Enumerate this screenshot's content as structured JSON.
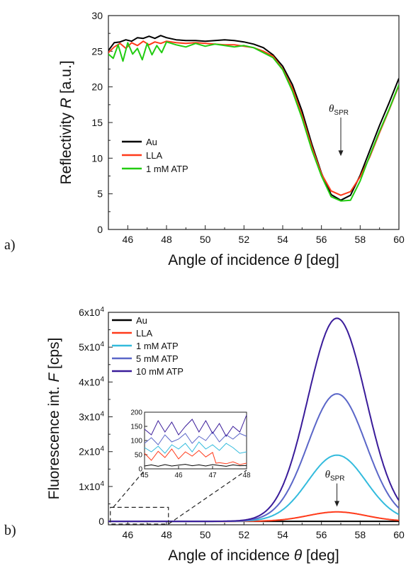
{
  "panel_a_label": "a)",
  "panel_b_label": "b)",
  "chart_data": [
    {
      "type": "line",
      "xlabel_main": "Angle of incidence ",
      "xlabel_sym": "θ",
      "xlabel_unit": " [deg]",
      "ylabel_main": "Reflectivity ",
      "ylabel_sym": "R",
      "ylabel_unit": " [a.u.]",
      "xlim": [
        45,
        60
      ],
      "ylim": [
        0,
        30
      ],
      "xticks": [
        46,
        48,
        50,
        52,
        54,
        56,
        58,
        60
      ],
      "yticks": [
        0,
        5,
        10,
        15,
        20,
        25,
        30
      ],
      "annotation": {
        "sym": "θ",
        "sub": "SPR",
        "x": 57,
        "y_text": 16.5,
        "arrow_to": 10.3
      },
      "series": [
        {
          "name": "Au",
          "color": "#000000",
          "x": [
            45,
            45.3,
            45.6,
            45.9,
            46.2,
            46.5,
            46.8,
            47.1,
            47.4,
            47.7,
            48,
            48.5,
            49,
            49.5,
            50,
            50.5,
            51,
            51.5,
            52,
            52.5,
            53,
            53.5,
            54,
            54.5,
            55,
            55.5,
            56,
            56.5,
            57,
            57.5,
            58,
            58.5,
            59,
            59.5,
            60
          ],
          "y": [
            25.1,
            26.2,
            26.3,
            26.6,
            26.4,
            26.9,
            26.8,
            27.1,
            26.8,
            27.2,
            26.9,
            26.6,
            26.5,
            26.5,
            26.4,
            26.5,
            26.6,
            26.5,
            26.3,
            26.0,
            25.5,
            24.5,
            22.9,
            20.3,
            16.6,
            12.0,
            7.9,
            4.9,
            4.1,
            4.8,
            7.6,
            11.1,
            14.6,
            17.8,
            21.2
          ]
        },
        {
          "name": "LLA",
          "color": "#ff3a1a",
          "x": [
            45,
            45.3,
            45.6,
            45.9,
            46.2,
            46.5,
            46.8,
            47.1,
            47.4,
            47.7,
            48,
            48.5,
            49,
            49.5,
            50,
            50.5,
            51,
            51.5,
            52,
            52.5,
            53,
            53.5,
            54,
            54.5,
            55,
            55.5,
            56,
            56.5,
            57,
            57.5,
            58,
            58.5,
            59,
            59.5,
            60
          ],
          "y": [
            24.8,
            25.6,
            26.1,
            25.4,
            26.2,
            25.8,
            26.4,
            25.9,
            26.3,
            26.1,
            26.4,
            26.2,
            26.1,
            26.2,
            26.1,
            26.0,
            25.9,
            25.9,
            25.7,
            25.5,
            25.0,
            24.3,
            22.5,
            19.8,
            16.0,
            11.6,
            7.8,
            5.4,
            4.8,
            5.3,
            7.4,
            10.2,
            13.6,
            16.8,
            20.2
          ]
        },
        {
          "name": "1 mM ATP",
          "color": "#22cc11",
          "x": [
            45,
            45.25,
            45.5,
            45.75,
            46,
            46.25,
            46.5,
            46.75,
            47,
            47.25,
            47.5,
            47.75,
            48,
            48.5,
            49,
            49.5,
            50,
            50.5,
            51,
            51.5,
            52,
            52.5,
            53,
            53.5,
            54,
            54.5,
            55,
            55.5,
            56,
            56.5,
            57,
            57.5,
            58,
            58.5,
            59,
            59.5,
            60
          ],
          "y": [
            24.6,
            24.0,
            25.9,
            23.6,
            26.2,
            24.6,
            25.4,
            23.8,
            26.1,
            24.5,
            25.8,
            24.8,
            26.3,
            25.9,
            25.6,
            26.1,
            25.7,
            26.0,
            25.8,
            25.6,
            25.8,
            25.5,
            24.8,
            24.1,
            22.4,
            19.4,
            15.6,
            11.2,
            7.5,
            4.6,
            4.0,
            4.1,
            6.8,
            10.4,
            13.8,
            16.9,
            20.3
          ]
        }
      ],
      "legend": [
        "Au",
        "LLA",
        "1 mM ATP"
      ]
    },
    {
      "type": "line",
      "xlabel_main": "Angle of incidence ",
      "xlabel_sym": "θ",
      "xlabel_unit": " [deg]",
      "ylabel_main": "Fluorescence int. ",
      "ylabel_sym": "F",
      "ylabel_unit": " [cps]",
      "xlim": [
        45,
        60
      ],
      "ylim": [
        -1000,
        60000
      ],
      "xticks": [
        46,
        48,
        50,
        52,
        54,
        56,
        58,
        60
      ],
      "yticks": [
        0,
        10000,
        20000,
        30000,
        40000,
        50000,
        60000
      ],
      "ytick_labels": [
        {
          "base": "0",
          "exp": ""
        },
        {
          "base": "1x10",
          "exp": "4"
        },
        {
          "base": "2x10",
          "exp": "4"
        },
        {
          "base": "3x10",
          "exp": "4"
        },
        {
          "base": "4x10",
          "exp": "4"
        },
        {
          "base": "5x10",
          "exp": "4"
        },
        {
          "base": "6x10",
          "exp": "4"
        }
      ],
      "annotation": {
        "sym": "θ",
        "sub": "SPR",
        "x": 56.8,
        "y_text": 12500,
        "arrow_to": 4200
      },
      "series": [
        {
          "name": "Au",
          "color": "#000000",
          "peak": 0,
          "center": 56.8,
          "width": 1.5
        },
        {
          "name": "LLA",
          "color": "#ff3a1a",
          "peak": 2700,
          "center": 56.8,
          "width": 1.5
        },
        {
          "name": "1 mM ATP",
          "color": "#33bbdd",
          "peak": 19000,
          "center": 56.8,
          "width": 1.5
        },
        {
          "name": "5 mM ATP",
          "color": "#5a66c8",
          "peak": 36600,
          "center": 56.8,
          "width": 1.5
        },
        {
          "name": "10 mM ATP",
          "color": "#3a1c9a",
          "peak": 58300,
          "center": 56.8,
          "width": 1.5
        }
      ],
      "legend": [
        "Au",
        "LLA",
        "1 mM ATP",
        "5 mM ATP",
        "10 mM ATP"
      ],
      "inset": {
        "xlim": [
          45,
          48
        ],
        "ylim": [
          0,
          200
        ],
        "xticks": [
          45,
          46,
          47,
          48
        ],
        "yticks": [
          0,
          50,
          100,
          150,
          200
        ],
        "series": [
          {
            "name": "Au",
            "color": "#000000",
            "x": [
              45,
              45.2,
              45.4,
              45.6,
              45.8,
              46,
              46.2,
              46.4,
              46.6,
              46.8,
              47,
              47.2,
              47.4,
              47.6,
              47.8,
              48
            ],
            "y": [
              10,
              14,
              9,
              15,
              10,
              13,
              16,
              11,
              14,
              10,
              15,
              12,
              9,
              14,
              11,
              12
            ]
          },
          {
            "name": "LLA",
            "color": "#ff3a1a",
            "x": [
              45,
              45.2,
              45.4,
              45.6,
              45.8,
              46,
              46.2,
              46.4,
              46.6,
              46.8,
              47,
              47.1,
              47.2,
              47.4,
              47.6,
              47.8,
              48
            ],
            "y": [
              55,
              30,
              62,
              40,
              70,
              35,
              60,
              45,
              65,
              42,
              58,
              20,
              22,
              18,
              25,
              15,
              20
            ]
          },
          {
            "name": "1 mM ATP",
            "color": "#33bbdd",
            "x": [
              45,
              45.2,
              45.4,
              45.6,
              45.8,
              46,
              46.2,
              46.4,
              46.6,
              46.8,
              47,
              47.2,
              47.4,
              47.6,
              47.8,
              48
            ],
            "y": [
              75,
              60,
              80,
              55,
              85,
              70,
              90,
              60,
              95,
              70,
              85,
              65,
              90,
              75,
              55,
              60
            ]
          },
          {
            "name": "5 mM ATP",
            "color": "#5a66c8",
            "x": [
              45,
              45.2,
              45.4,
              45.6,
              45.8,
              46,
              46.2,
              46.4,
              46.6,
              46.8,
              47,
              47.2,
              47.4,
              47.6,
              47.8,
              48
            ],
            "y": [
              90,
              110,
              85,
              120,
              95,
              105,
              125,
              90,
              115,
              100,
              130,
              95,
              120,
              105,
              125,
              115
            ]
          },
          {
            "name": "10 mM ATP",
            "color": "#3a1c9a",
            "x": [
              45,
              45.2,
              45.4,
              45.6,
              45.8,
              46,
              46.2,
              46.4,
              46.6,
              46.8,
              47,
              47.2,
              47.4,
              47.6,
              47.8,
              48
            ],
            "y": [
              140,
              120,
              170,
              130,
              165,
              120,
              150,
              175,
              130,
              170,
              125,
              160,
              115,
              150,
              130,
              190
            ]
          }
        ]
      }
    }
  ]
}
